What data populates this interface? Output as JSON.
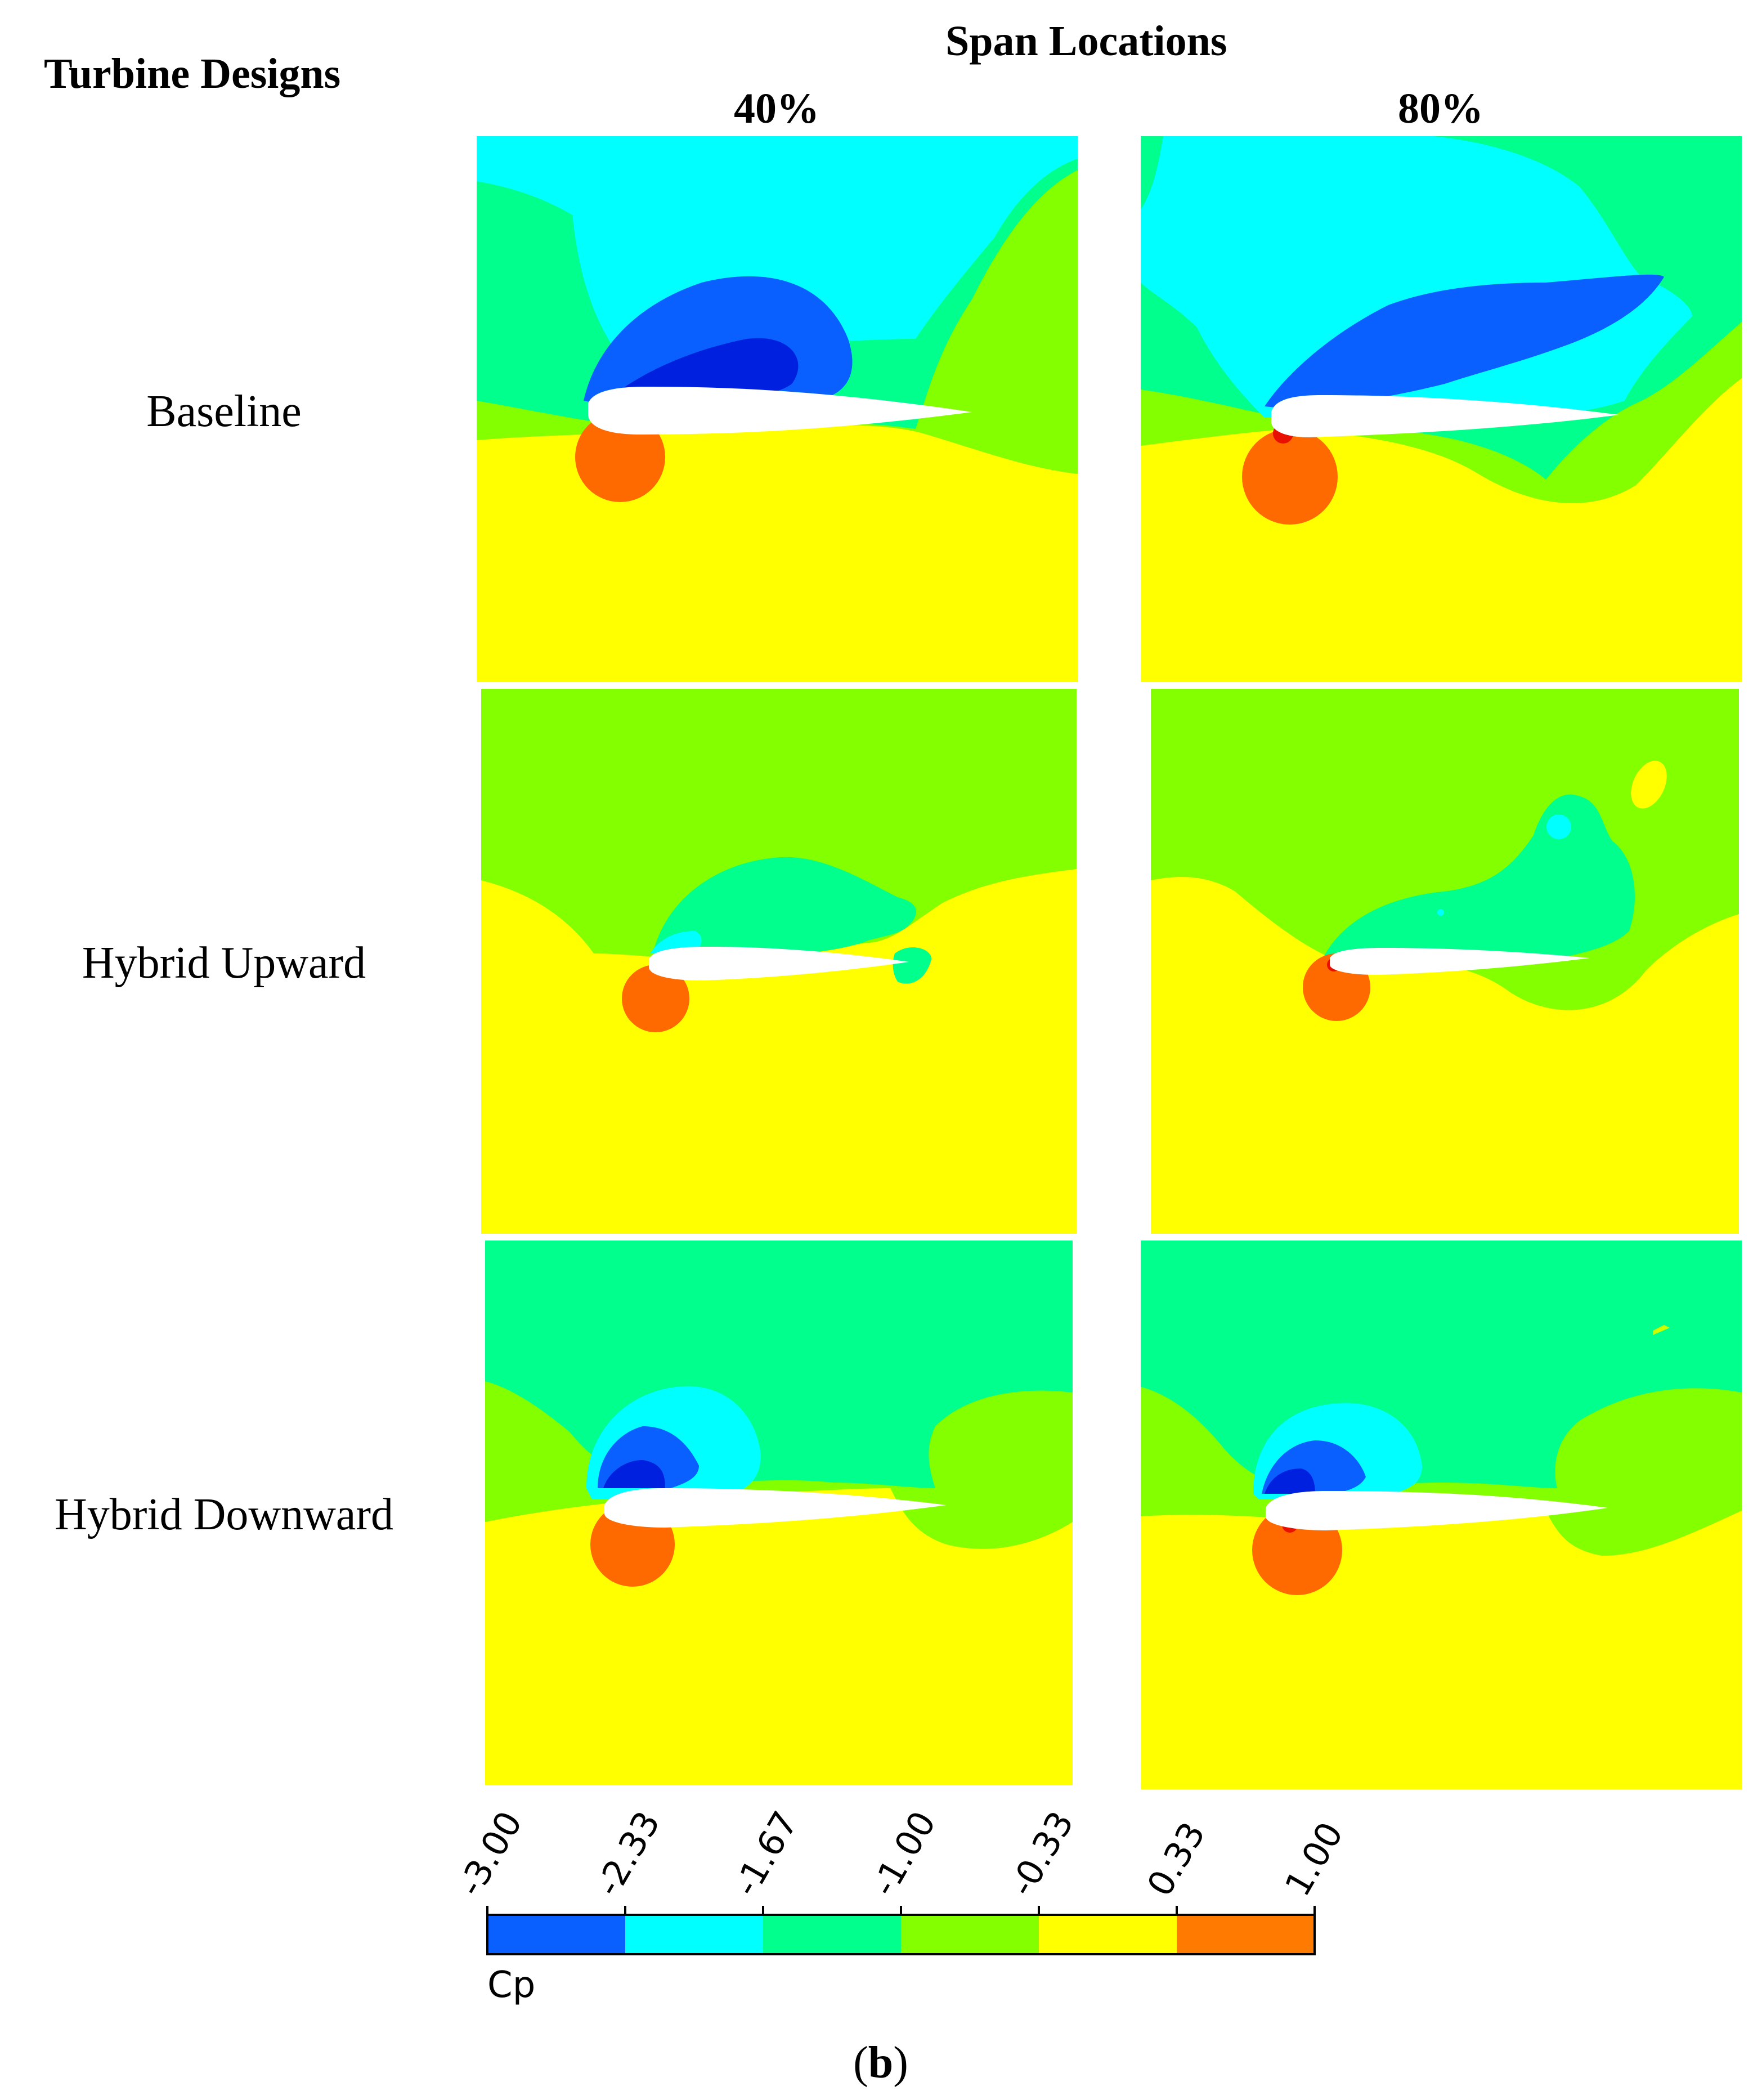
{
  "header": {
    "row_title": "Turbine Designs",
    "col_title": "Span Locations"
  },
  "columns": [
    {
      "label": "40%"
    },
    {
      "label": "80%"
    }
  ],
  "rows": [
    {
      "label": "Baseline"
    },
    {
      "label": "Hybrid Upward"
    },
    {
      "label": "Hybrid Downward"
    }
  ],
  "colorbar": {
    "variable": "Cp",
    "ticks": [
      "-3.00",
      "-2.33",
      "-1.67",
      "-1.00",
      "-0.33",
      "0.33",
      "1.00"
    ],
    "colors": [
      "#0a60ff",
      "#00ffff",
      "#00ff8c",
      "#84ff00",
      "#ffff00",
      "#ff7a00"
    ]
  },
  "caption": {
    "open": "(",
    "letter": "b",
    "close": ")"
  }
}
